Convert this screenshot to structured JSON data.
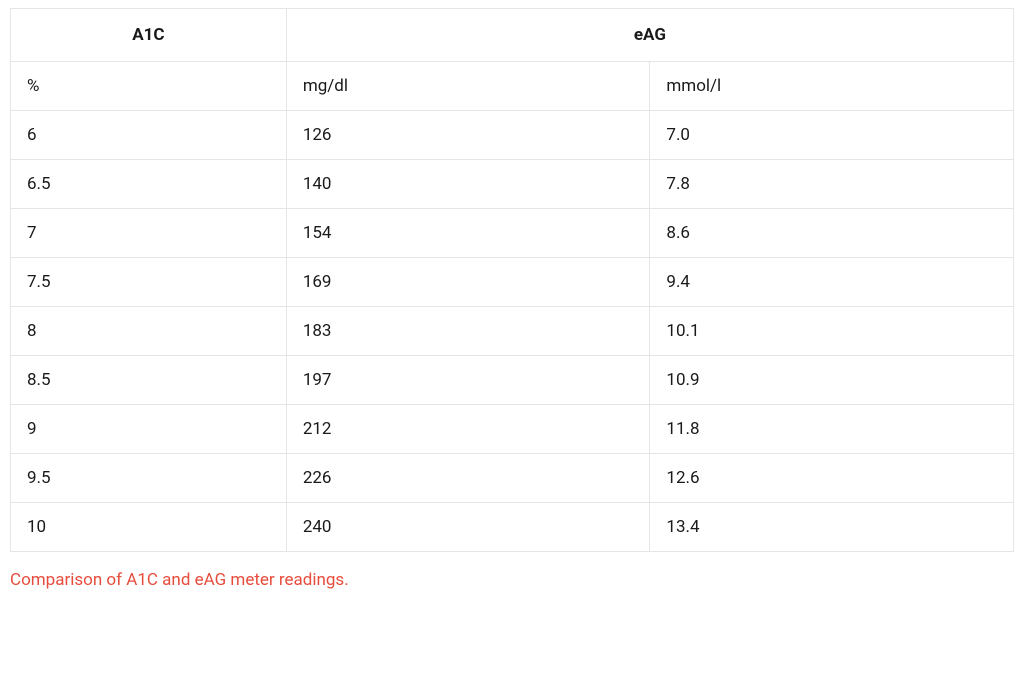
{
  "table": {
    "type": "table",
    "border_color": "#e5e5e5",
    "background_color": "#ffffff",
    "text_color": "#1a1a1a",
    "header_font_weight": 700,
    "cell_fontsize": 17,
    "columns": [
      {
        "key": "a1c",
        "width_pct": 27.5
      },
      {
        "key": "mgdl",
        "width_pct": 36.25
      },
      {
        "key": "mmoll",
        "width_pct": 36.25
      }
    ],
    "headers": {
      "a1c": "A1C",
      "eag": "eAG"
    },
    "units_row": {
      "a1c": "%",
      "mgdl": "mg/dl",
      "mmoll": "mmol/l"
    },
    "rows": [
      {
        "a1c": "6",
        "mgdl": "126",
        "mmoll": "7.0"
      },
      {
        "a1c": "6.5",
        "mgdl": "140",
        "mmoll": "7.8"
      },
      {
        "a1c": "7",
        "mgdl": "154",
        "mmoll": "8.6"
      },
      {
        "a1c": "7.5",
        "mgdl": "169",
        "mmoll": "9.4"
      },
      {
        "a1c": "8",
        "mgdl": "183",
        "mmoll": "10.1"
      },
      {
        "a1c": "8.5",
        "mgdl": "197",
        "mmoll": "10.9"
      },
      {
        "a1c": "9",
        "mgdl": "212",
        "mmoll": "11.8"
      },
      {
        "a1c": "9.5",
        "mgdl": "226",
        "mmoll": "12.6"
      },
      {
        "a1c": "10",
        "mgdl": "240",
        "mmoll": "13.4"
      }
    ]
  },
  "caption": {
    "text": "Comparison of A1C and eAG meter readings.",
    "color": "#e74c3c",
    "fontsize": 17
  }
}
